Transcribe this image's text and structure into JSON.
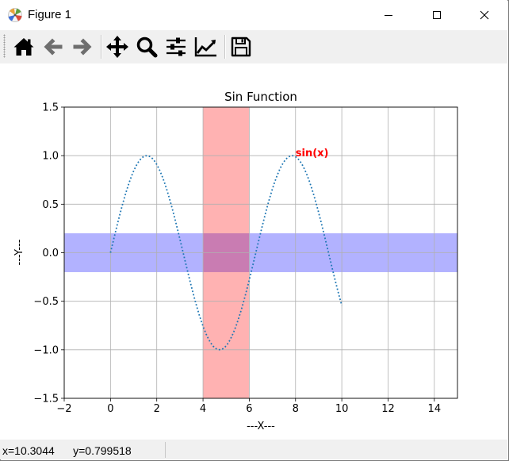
{
  "window": {
    "title": "Figure 1",
    "minimize_label": "Minimize",
    "maximize_label": "Maximize",
    "close_label": "Close"
  },
  "toolbar": {
    "buttons": [
      {
        "name": "home-button",
        "icon": "home-icon",
        "tooltip": "Reset original view"
      },
      {
        "name": "back-button",
        "icon": "arrow-left-icon",
        "tooltip": "Back to previous view"
      },
      {
        "name": "forward-button",
        "icon": "arrow-right-icon",
        "tooltip": "Forward to next view"
      },
      {
        "name": "pan-button",
        "icon": "move-icon",
        "tooltip": "Pan axes"
      },
      {
        "name": "zoom-button",
        "icon": "magnifier-icon",
        "tooltip": "Zoom to rectangle"
      },
      {
        "name": "subplots-button",
        "icon": "sliders-icon",
        "tooltip": "Configure subplots"
      },
      {
        "name": "edit-axes-button",
        "icon": "line-chart-icon",
        "tooltip": "Edit axis, curve and image parameters"
      },
      {
        "name": "save-button",
        "icon": "floppy-disk-icon",
        "tooltip": "Save the figure"
      }
    ]
  },
  "status": {
    "coords": "x=10.3044      y=0.799518"
  },
  "chart_data": {
    "type": "line",
    "title": "Sin Function",
    "xlabel": "---X---",
    "ylabel": "---Y---",
    "xlim": [
      -2,
      15
    ],
    "ylim": [
      -1.5,
      1.5
    ],
    "xticks": [
      -2,
      0,
      2,
      4,
      6,
      8,
      10,
      12,
      14
    ],
    "yticks": [
      -1.5,
      -1.0,
      -0.5,
      0.0,
      0.5,
      1.0,
      1.5
    ],
    "xtick_labels": [
      "−2",
      "0",
      "2",
      "4",
      "6",
      "8",
      "10",
      "12",
      "14"
    ],
    "ytick_labels": [
      "−1.5",
      "−1.0",
      "−0.5",
      "0.0",
      "0.5",
      "1.0",
      "1.5"
    ],
    "grid": true,
    "series": [
      {
        "function": "sin(x)",
        "x_range": [
          0,
          10
        ],
        "samples": 100,
        "line_style": "dotted",
        "color": "#1f77b4"
      }
    ],
    "vertical_span": {
      "x": [
        4,
        6
      ],
      "color": "#ff0000",
      "alpha": 0.3
    },
    "horizontal_span": {
      "y": [
        -0.2,
        0.2
      ],
      "color": "#0000ff",
      "alpha": 0.3
    },
    "annotations": [
      {
        "text": "sin(x)",
        "x": 8,
        "y": 1.0,
        "color": "#ff0000",
        "weight": "bold"
      }
    ]
  }
}
